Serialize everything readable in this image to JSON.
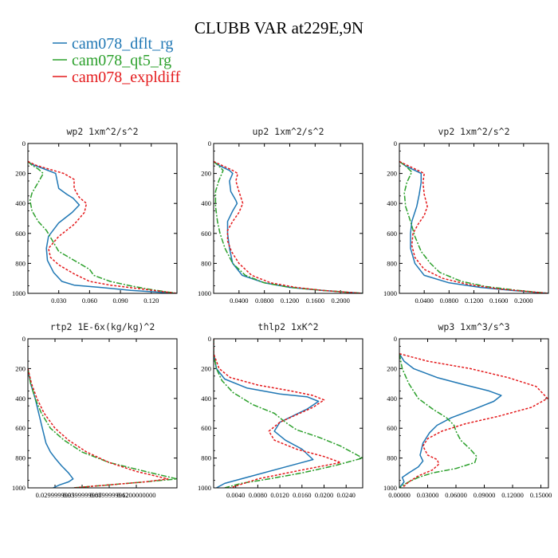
{
  "title": "CLUBB VAR at229E,9N",
  "legend": [
    {
      "label": "cam078_dflt_rg",
      "color": "#1f77b4",
      "dash": ""
    },
    {
      "label": "cam078_qt5_rg",
      "color": "#2ca02c",
      "dash": "7 2 2 2"
    },
    {
      "label": "cam078_expldiff",
      "color": "#e41a1c",
      "dash": "3 2"
    }
  ],
  "chart_data": [
    {
      "type": "line",
      "title": "wp2  1xm^2/s^2",
      "xlim": [
        0.0,
        0.145
      ],
      "ylim": [
        1000,
        0
      ],
      "xticks": [
        0.03,
        0.06,
        0.09,
        0.12
      ],
      "xticklabels": [
        "0.030",
        "0.060",
        "0.090",
        "0.120"
      ],
      "yticks": [
        0,
        200,
        400,
        600,
        800,
        1000
      ],
      "series": [
        {
          "name": "cam078_dflt_rg",
          "x": [
            0.0,
            0.004,
            0.014,
            0.027,
            0.03,
            0.038,
            0.044,
            0.05,
            0.043,
            0.03,
            0.02,
            0.018,
            0.019,
            0.025,
            0.033,
            0.045,
            0.07,
            0.1,
            0.145
          ],
          "y": [
            120,
            140,
            165,
            200,
            300,
            340,
            365,
            410,
            460,
            530,
            620,
            700,
            780,
            860,
            920,
            945,
            960,
            980,
            1000
          ]
        },
        {
          "name": "cam078_qt5_rg",
          "x": [
            0.0,
            0.004,
            0.01,
            0.015,
            0.01,
            0.004,
            0.002,
            0.004,
            0.01,
            0.018,
            0.024,
            0.03,
            0.045,
            0.06,
            0.064,
            0.08,
            0.1,
            0.12,
            0.145
          ],
          "y": [
            120,
            145,
            170,
            200,
            260,
            330,
            380,
            450,
            520,
            580,
            650,
            720,
            780,
            840,
            880,
            920,
            950,
            975,
            1000
          ]
        },
        {
          "name": "cam078_expldiff",
          "x": [
            0.0,
            0.008,
            0.02,
            0.035,
            0.045,
            0.045,
            0.05,
            0.057,
            0.055,
            0.045,
            0.03,
            0.02,
            0.022,
            0.03,
            0.045,
            0.06,
            0.08,
            0.11,
            0.145
          ],
          "y": [
            120,
            145,
            170,
            200,
            240,
            300,
            360,
            400,
            460,
            540,
            620,
            700,
            760,
            810,
            870,
            920,
            945,
            970,
            1000
          ]
        }
      ]
    },
    {
      "type": "line",
      "title": "up2  1xm^2/s^2",
      "xlim": [
        0.0,
        0.235
      ],
      "ylim": [
        1000,
        0
      ],
      "xticks": [
        0.04,
        0.08,
        0.12,
        0.16,
        0.2
      ],
      "xticklabels": [
        "0.0400",
        "0.0800",
        "0.1200",
        "0.1600",
        "0.2000"
      ],
      "yticks": [
        0,
        200,
        400,
        600,
        800,
        1000
      ],
      "series": [
        {
          "name": "cam078_dflt_rg",
          "x": [
            0.0,
            0.01,
            0.025,
            0.03,
            0.025,
            0.027,
            0.035,
            0.037,
            0.03,
            0.022,
            0.022,
            0.025,
            0.03,
            0.045,
            0.08,
            0.12,
            0.17,
            0.235
          ],
          "y": [
            120,
            150,
            180,
            200,
            250,
            320,
            380,
            400,
            450,
            520,
            600,
            700,
            800,
            880,
            930,
            960,
            980,
            1000
          ]
        },
        {
          "name": "cam078_qt5_rg",
          "x": [
            0.0,
            0.008,
            0.015,
            0.008,
            0.003,
            0.003,
            0.006,
            0.01,
            0.018,
            0.03,
            0.05,
            0.08,
            0.12,
            0.17,
            0.235
          ],
          "y": [
            120,
            150,
            180,
            250,
            320,
            420,
            520,
            600,
            700,
            800,
            880,
            930,
            960,
            980,
            1000
          ]
        },
        {
          "name": "cam078_expldiff",
          "x": [
            0.0,
            0.015,
            0.03,
            0.038,
            0.035,
            0.04,
            0.046,
            0.04,
            0.03,
            0.022,
            0.022,
            0.028,
            0.04,
            0.06,
            0.09,
            0.13,
            0.17,
            0.235
          ],
          "y": [
            120,
            150,
            180,
            200,
            250,
            320,
            400,
            460,
            520,
            580,
            650,
            720,
            800,
            880,
            930,
            960,
            980,
            1000
          ]
        }
      ]
    },
    {
      "type": "line",
      "title": "vp2  1xm^2/s^2",
      "xlim": [
        0.0,
        0.24
      ],
      "ylim": [
        1000,
        0
      ],
      "xticks": [
        0.04,
        0.08,
        0.12,
        0.16,
        0.2
      ],
      "xticklabels": [
        "0.0400",
        "0.0800",
        "0.1200",
        "0.1600",
        "0.2000"
      ],
      "yticks": [
        0,
        200,
        400,
        600,
        800,
        1000
      ],
      "series": [
        {
          "name": "cam078_dflt_rg",
          "x": [
            0.0,
            0.01,
            0.025,
            0.035,
            0.035,
            0.032,
            0.028,
            0.02,
            0.018,
            0.018,
            0.025,
            0.04,
            0.08,
            0.13,
            0.18,
            0.24
          ],
          "y": [
            120,
            150,
            180,
            200,
            260,
            340,
            420,
            520,
            600,
            700,
            800,
            880,
            930,
            960,
            980,
            1000
          ]
        },
        {
          "name": "cam078_qt5_rg",
          "x": [
            0.0,
            0.01,
            0.02,
            0.012,
            0.008,
            0.01,
            0.018,
            0.025,
            0.035,
            0.05,
            0.065,
            0.1,
            0.14,
            0.19,
            0.24
          ],
          "y": [
            120,
            150,
            190,
            260,
            330,
            420,
            520,
            620,
            720,
            800,
            860,
            920,
            955,
            980,
            1000
          ]
        },
        {
          "name": "cam078_expldiff",
          "x": [
            0.0,
            0.015,
            0.03,
            0.04,
            0.038,
            0.04,
            0.045,
            0.04,
            0.03,
            0.022,
            0.02,
            0.025,
            0.04,
            0.07,
            0.11,
            0.16,
            0.24
          ],
          "y": [
            120,
            150,
            180,
            200,
            260,
            340,
            420,
            480,
            540,
            600,
            680,
            760,
            840,
            900,
            940,
            970,
            1000
          ]
        }
      ]
    },
    {
      "type": "line",
      "title": "rtp2  1E-6x(kg/kg)^2",
      "xlim": [
        0.0,
        0.165
      ],
      "ylim": [
        1000,
        0
      ],
      "xticks": [
        0.03,
        0.06,
        0.09,
        0.12
      ],
      "xticklabels": [
        "0.0299999993",
        "0.0599999987",
        "0.0899999962",
        "0.1200000000"
      ],
      "yticks": [
        0,
        200,
        400,
        600,
        800,
        1000
      ],
      "series": [
        {
          "name": "cam078_dflt_rg",
          "x": [
            0.0,
            0.003,
            0.008,
            0.012,
            0.016,
            0.02,
            0.025,
            0.03,
            0.037,
            0.045,
            0.05,
            0.045,
            0.035,
            0.028
          ],
          "y": [
            200,
            300,
            400,
            500,
            600,
            700,
            760,
            800,
            850,
            900,
            940,
            960,
            980,
            1000
          ]
        },
        {
          "name": "cam078_qt5_rg",
          "x": [
            0.0,
            0.003,
            0.008,
            0.015,
            0.025,
            0.04,
            0.06,
            0.09,
            0.13,
            0.165,
            0.13,
            0.08,
            0.05
          ],
          "y": [
            200,
            300,
            400,
            500,
            600,
            680,
            760,
            830,
            890,
            940,
            960,
            985,
            1000
          ]
        },
        {
          "name": "cam078_expldiff",
          "x": [
            0.0,
            0.004,
            0.01,
            0.018,
            0.03,
            0.045,
            0.065,
            0.09,
            0.12,
            0.155,
            0.13,
            0.08,
            0.05
          ],
          "y": [
            200,
            300,
            400,
            500,
            600,
            680,
            760,
            830,
            890,
            940,
            960,
            985,
            1000
          ]
        }
      ]
    },
    {
      "type": "line",
      "title": "thlp2  1xK^2",
      "xlim": [
        0.0,
        0.027
      ],
      "ylim": [
        1000,
        0
      ],
      "xticks": [
        0.004,
        0.008,
        0.012,
        0.016,
        0.02,
        0.024
      ],
      "xticklabels": [
        "0.0040",
        "0.0080",
        "0.0120",
        "0.0160",
        "0.0200",
        "0.0240"
      ],
      "yticks": [
        0,
        200,
        400,
        600,
        800,
        1000
      ],
      "series": [
        {
          "name": "cam078_dflt_rg",
          "x": [
            0.0,
            0.0,
            0.0005,
            0.002,
            0.006,
            0.012,
            0.017,
            0.019,
            0.017,
            0.012,
            0.011,
            0.013,
            0.016,
            0.018,
            0.013,
            0.006,
            0.002,
            0.0005
          ],
          "y": [
            0,
            100,
            200,
            270,
            330,
            370,
            390,
            420,
            470,
            560,
            620,
            680,
            740,
            810,
            860,
            930,
            970,
            1000
          ]
        },
        {
          "name": "cam078_qt5_rg",
          "x": [
            0.0,
            0.0,
            0.0005,
            0.0015,
            0.0035,
            0.007,
            0.011,
            0.013,
            0.015,
            0.019,
            0.023,
            0.027,
            0.022,
            0.016,
            0.01,
            0.005,
            0.002
          ],
          "y": [
            0,
            100,
            200,
            280,
            360,
            440,
            500,
            560,
            610,
            660,
            720,
            800,
            850,
            900,
            940,
            970,
            1000
          ]
        },
        {
          "name": "cam078_expldiff",
          "x": [
            0.0,
            0.0,
            0.001,
            0.003,
            0.008,
            0.014,
            0.018,
            0.02,
            0.018,
            0.012,
            0.01,
            0.011,
            0.015,
            0.02,
            0.023,
            0.016,
            0.008,
            0.003
          ],
          "y": [
            0,
            100,
            200,
            260,
            310,
            350,
            380,
            410,
            460,
            560,
            620,
            680,
            740,
            790,
            830,
            880,
            940,
            1000
          ]
        }
      ]
    },
    {
      "type": "line",
      "title": "wp3  1xm^3/s^3",
      "xlim": [
        0.0,
        0.158
      ],
      "ylim": [
        1000,
        0
      ],
      "xticks": [
        0.0,
        0.03,
        0.06,
        0.09,
        0.12,
        0.15
      ],
      "xticklabels": [
        "0.00000",
        "0.03000",
        "0.06000",
        "0.09000",
        "0.12000",
        "0.15000"
      ],
      "yticks": [
        0,
        200,
        400,
        600,
        800,
        1000
      ],
      "series": [
        {
          "name": "cam078_dflt_rg",
          "x": [
            0.0,
            0.005,
            0.015,
            0.04,
            0.07,
            0.095,
            0.108,
            0.1,
            0.08,
            0.055,
            0.04,
            0.032,
            0.025,
            0.022,
            0.025,
            0.02,
            0.01,
            0.003,
            0.005,
            0.0
          ],
          "y": [
            100,
            150,
            200,
            260,
            310,
            350,
            380,
            420,
            470,
            530,
            580,
            630,
            700,
            780,
            820,
            860,
            900,
            930,
            960,
            1000
          ]
        },
        {
          "name": "cam078_qt5_rg",
          "x": [
            0.0,
            0.003,
            0.01,
            0.02,
            0.035,
            0.05,
            0.058,
            0.06,
            0.065,
            0.075,
            0.082,
            0.08,
            0.06,
            0.035,
            0.02,
            0.01,
            0.003,
            0.0
          ],
          "y": [
            100,
            200,
            300,
            400,
            470,
            530,
            580,
            620,
            680,
            740,
            790,
            830,
            870,
            900,
            930,
            960,
            985,
            1000
          ]
        },
        {
          "name": "cam078_expldiff",
          "x": [
            0.0,
            0.03,
            0.075,
            0.115,
            0.145,
            0.157,
            0.14,
            0.105,
            0.07,
            0.045,
            0.03,
            0.025,
            0.03,
            0.04,
            0.042,
            0.035,
            0.02,
            0.01,
            0.003
          ],
          "y": [
            100,
            150,
            200,
            260,
            320,
            400,
            460,
            520,
            570,
            620,
            670,
            720,
            780,
            810,
            840,
            880,
            920,
            960,
            1000
          ]
        }
      ]
    }
  ]
}
